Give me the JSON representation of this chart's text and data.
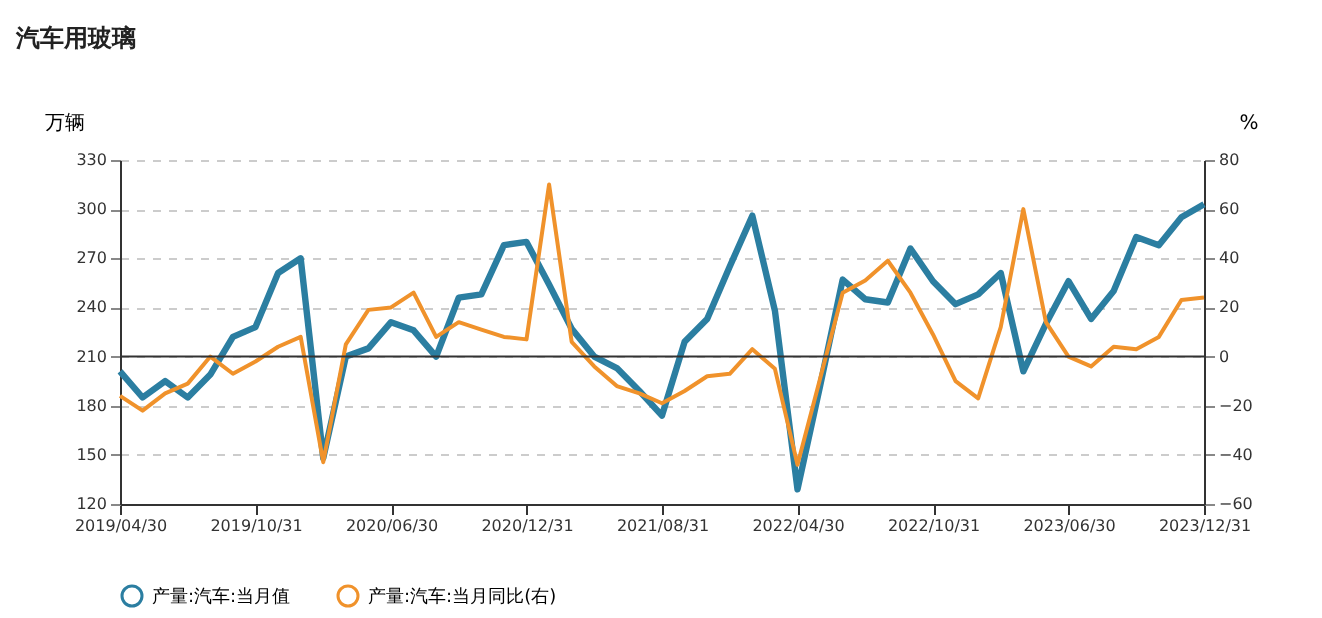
{
  "chart_data": {
    "type": "line",
    "title": "汽车用玻璃",
    "ylabel": "万辆",
    "y2label": "%",
    "categories": [
      "2019/04/30",
      null,
      null,
      null,
      null,
      null,
      "2019/10/31",
      null,
      null,
      null,
      null,
      null,
      "2020/06/30",
      null,
      null,
      null,
      null,
      null,
      "2020/12/31",
      null,
      null,
      null,
      null,
      null,
      "2021/08/31",
      null,
      null,
      null,
      null,
      null,
      "2022/04/30",
      null,
      null,
      null,
      null,
      null,
      "2022/10/31",
      null,
      null,
      null,
      null,
      null,
      "2023/06/30",
      null,
      null,
      null,
      null,
      null,
      "2023/12/31"
    ],
    "series": [
      {
        "name": "产量:汽车:当月值",
        "color": "#2b7ea1",
        "axis": "y",
        "values": [
          201,
          185,
          195,
          185,
          199,
          222,
          228,
          261,
          270,
          148,
          210,
          215,
          231,
          226,
          210,
          246,
          248,
          278,
          280,
          254,
          227,
          210,
          203,
          189,
          174,
          219,
          233,
          265,
          296,
          238,
          129,
          192,
          257,
          245,
          243,
          276,
          256,
          242,
          248,
          261,
          201,
          230,
          256,
          233,
          250,
          283,
          278,
          295,
          303
        ]
      },
      {
        "name": "产量:汽车:当月同比(右)",
        "color": "#f0922b",
        "axis": "y2",
        "values": [
          -16,
          -22,
          -15,
          -11,
          0,
          -7,
          -2,
          4,
          8,
          -43,
          5,
          19,
          20,
          26,
          8,
          14,
          11,
          8,
          7,
          70,
          6,
          -4,
          -12,
          -15,
          -19,
          -14,
          -8,
          -7,
          3,
          -5,
          -44,
          -9,
          26,
          31,
          39,
          26,
          9,
          -10,
          -17,
          12,
          60,
          14,
          0,
          -4,
          4,
          3,
          8,
          23,
          24
        ]
      }
    ],
    "ylim": [
      120,
      330
    ],
    "yticks": [
      120,
      150,
      180,
      210,
      240,
      270,
      300,
      330
    ],
    "y2lim": [
      -60,
      80
    ],
    "y2ticks": [
      -60,
      -40,
      -20,
      0,
      20,
      40,
      60,
      80
    ],
    "ref_lines": [
      {
        "axis": "y2",
        "value": 0,
        "color": "#333333"
      }
    ],
    "grid": "y",
    "legend": "bottom",
    "marker": "none",
    "line_style": "solid"
  }
}
